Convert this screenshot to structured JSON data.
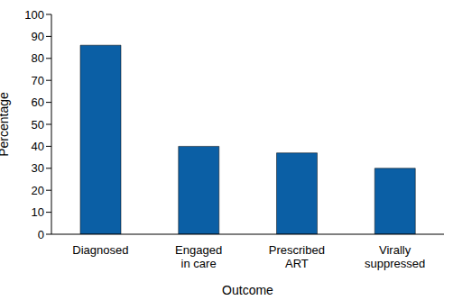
{
  "chart_data": {
    "type": "bar",
    "x_label": "Outcome",
    "y_label": "Percentage",
    "categories": [
      "Diagnosed",
      "Engaged in care",
      "Prescribed ART",
      "Virally suppressed"
    ],
    "values": [
      86,
      40,
      37,
      30
    ],
    "color": "#0b5fa5",
    "ylim": [
      0,
      100
    ],
    "yticks": [
      0,
      10,
      20,
      30,
      40,
      50,
      60,
      70,
      80,
      90,
      100
    ],
    "grid": false
  }
}
